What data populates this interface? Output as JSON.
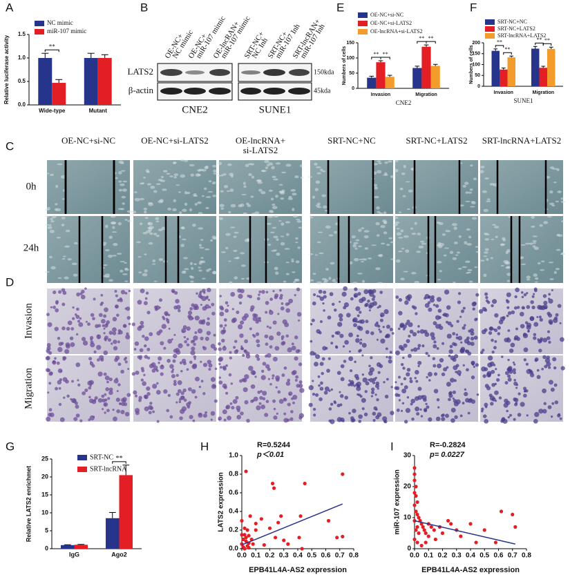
{
  "panel_labels": [
    "A",
    "B",
    "C",
    "D",
    "E",
    "F",
    "G",
    "H",
    "I"
  ],
  "blot": {
    "lanes": [
      [
        "OE-NC+",
        "NC mimic"
      ],
      [
        "OE-NC+",
        "miR-107 mimic"
      ],
      [
        "OE-lncRAN+",
        "miR-107 mimic"
      ],
      [
        "SRT-NC+",
        "NC Inh"
      ],
      [
        "SRT-NC+",
        "miR-107 Inh"
      ],
      [
        "SRT-lncRAN+",
        "miR-107 Inh"
      ]
    ],
    "proteins": [
      "LATS2",
      "β-actin"
    ],
    "sizes": [
      "150kda",
      "45kda"
    ],
    "cell_lines": [
      "CNE2",
      "SUNE1"
    ]
  },
  "wound_healing": {
    "conditions": [
      [
        "OE-NC+si-NC"
      ],
      [
        "OE-NC+si-LATS2"
      ],
      [
        "OE-lncRNA+",
        "si-LATS2"
      ],
      [
        "SRT-NC+NC"
      ],
      [
        "SRT-NC+LATS2"
      ],
      [
        "SRT-lncRNA+LATS2"
      ]
    ],
    "timepoints": [
      "0h",
      "24h"
    ]
  },
  "transwell": {
    "assays": [
      "Invasion",
      "Migration"
    ]
  },
  "chart_data": [
    {
      "type": "bar",
      "y_label": "Relative luciferase activity",
      "categories": [
        "Wide-type",
        "Mutant"
      ],
      "series": [
        {
          "name": "NC mimic",
          "color": "#27348b",
          "values": [
            1.0,
            1.0
          ],
          "errors": [
            0.1,
            0.1
          ]
        },
        {
          "name": "miR-107 mimic",
          "color": "#e31e24",
          "values": [
            0.47,
            1.0
          ],
          "errors": [
            0.07,
            0.07
          ]
        }
      ],
      "ylim": [
        0,
        1.5
      ],
      "yticks": [
        {
          "value": 0,
          "label": "0.0"
        },
        0.5,
        {
          "value": 1,
          "label": "1.0"
        },
        1.5
      ],
      "legend": "top-left",
      "annotations": [
        "**"
      ]
    },
    {
      "type": "bar",
      "y_label": "Numbers of cells",
      "x_label": "CNE2",
      "categories": [
        "Invasion",
        "Migration"
      ],
      "series": [
        {
          "name": "OE-NC+si-NC",
          "color": "#27348b",
          "values": [
            35,
            67
          ],
          "errors": [
            5,
            6
          ]
        },
        {
          "name": "OE-NC+si-LATS2",
          "color": "#e31e24",
          "values": [
            86,
            137
          ],
          "errors": [
            5,
            6
          ]
        },
        {
          "name": "OE-lncRNA+si-LATS2",
          "color": "#f39c2c",
          "values": [
            38,
            74
          ],
          "errors": [
            5,
            5
          ]
        }
      ],
      "ylim": [
        0,
        150
      ],
      "yticks": [
        0,
        50,
        100,
        150
      ],
      "legend": "top-left",
      "annotations": [
        "**",
        "**",
        "**",
        "**"
      ]
    },
    {
      "type": "bar",
      "y_label": "Numbers of cells",
      "x_label": "SUNE1",
      "categories": [
        "Invasion",
        "Migration"
      ],
      "series": [
        {
          "name": "SRT-NC+NC",
          "color": "#27348b",
          "values": [
            163,
            173
          ],
          "errors": [
            9,
            10
          ]
        },
        {
          "name": "SRT-NC+LATS2",
          "color": "#e31e24",
          "values": [
            77,
            85
          ],
          "errors": [
            7,
            7
          ]
        },
        {
          "name": "SRT-lncRNA+LATS2",
          "color": "#f39c2c",
          "values": [
            133,
            172
          ],
          "errors": [
            6,
            8
          ]
        }
      ],
      "ylim": [
        0,
        200
      ],
      "yticks": [
        0,
        50,
        100,
        150,
        200
      ],
      "legend": "top-left",
      "annotations": [
        "**",
        "**",
        "**",
        "**"
      ]
    },
    {
      "type": "bar",
      "y_label": "Relative LATS2 enrichmet",
      "categories": [
        "IgG",
        "Ago2"
      ],
      "series": [
        {
          "name": "SRT-NC",
          "color": "#27348b",
          "values": [
            1.0,
            8.5
          ],
          "errors": [
            0.1,
            1.6
          ]
        },
        {
          "name": "SRT-lncRNA",
          "color": "#e31e24",
          "values": [
            1.1,
            20.5
          ],
          "errors": [
            0.1,
            2.8
          ]
        }
      ],
      "ylim": [
        0,
        25
      ],
      "yticks": [
        0,
        5,
        10,
        15,
        20,
        25
      ],
      "legend": "top-left",
      "annotations": [
        "**"
      ]
    },
    {
      "type": "scatter",
      "x_label": "EPB41L4A-AS2 expression",
      "y_label": "LATS2 expression",
      "stats": [
        "R=0.5244",
        "p＜0.01"
      ],
      "color": "#e31e24",
      "x": [
        0.0,
        0.01,
        0.01,
        0.02,
        0.02,
        0.03,
        0.03,
        0.04,
        0.04,
        0.05,
        0.05,
        0.06,
        0.07,
        0.08,
        0.1,
        0.1,
        0.03,
        0.0,
        0.14,
        0.16,
        0.2,
        0.22,
        0.23,
        0.24,
        0.26,
        0.28,
        0.3,
        0.33,
        0.42,
        0.43,
        0.45,
        0.41,
        0.62,
        0.68,
        0.72,
        0.72,
        0.0,
        0.02,
        0.05
      ],
      "y": [
        0.05,
        0.1,
        0.02,
        0.15,
        0.0,
        0.08,
        0.12,
        0.03,
        0.2,
        0.06,
        0.01,
        0.35,
        0.1,
        0.05,
        0.2,
        0.27,
        0.83,
        0.3,
        0.32,
        0.04,
        0.22,
        0.7,
        0.65,
        0.12,
        0.28,
        0.35,
        0.09,
        0.05,
        0.35,
        0.0,
        0.7,
        0.12,
        0.3,
        0.12,
        0.8,
        0.13,
        0.15,
        0.22,
        0.14
      ],
      "trend": {
        "x": [
          0,
          0.72
        ],
        "y": [
          0.04,
          0.48
        ],
        "color": "#27348b"
      },
      "xlim": [
        0,
        0.8
      ],
      "xticks": [
        {
          "value": 0,
          "label": "0.0"
        },
        0.1,
        0.2,
        0.3,
        0.4,
        0.5,
        0.6,
        0.7,
        0.8
      ],
      "ylim": [
        0,
        1.0
      ],
      "yticks": [
        {
          "value": 0,
          "label": "0.0"
        },
        0.2,
        0.4,
        0.6,
        0.8,
        {
          "value": 1,
          "label": "1.0"
        }
      ]
    },
    {
      "type": "scatter",
      "x_label": "EPB41L4A-AS2 expression",
      "y_label": "miR-107 expression",
      "stats": [
        "R=-0.2824",
        "p= 0.0227"
      ],
      "color": "#e31e24",
      "x": [
        0,
        0,
        0,
        0.01,
        0,
        0.01,
        0.02,
        0,
        0.01,
        0.02,
        0.03,
        0,
        0.04,
        0.05,
        0.02,
        0.06,
        0.01,
        0.03,
        0.07,
        0.08,
        0.1,
        0.1,
        0.12,
        0.14,
        0.15,
        0.18,
        0.2,
        0.24,
        0.26,
        0.3,
        0.33,
        0.4,
        0.44,
        0.5,
        0.58,
        0.62,
        0.7,
        0.72,
        0,
        0.02,
        0.05,
        0.08
      ],
      "y": [
        26,
        24,
        22,
        20,
        18,
        17,
        15,
        14,
        12,
        11,
        10,
        9,
        9,
        8,
        7,
        7,
        6,
        5,
        6,
        5,
        8,
        4,
        7,
        6,
        3,
        7,
        5,
        9,
        8,
        6,
        4,
        8,
        2,
        6,
        2,
        12,
        11,
        7,
        3,
        2,
        1,
        2
      ],
      "trend": {
        "x": [
          0,
          0.72
        ],
        "y": [
          9,
          1.5
        ],
        "color": "#27348b"
      },
      "xlim": [
        0,
        0.8
      ],
      "xticks": [
        {
          "value": 0,
          "label": "0.0"
        },
        0.1,
        0.2,
        0.3,
        0.4,
        0.5,
        0.6,
        0.7,
        0.8
      ],
      "ylim": [
        0,
        30
      ],
      "yticks": [
        0,
        10,
        20,
        30
      ]
    }
  ]
}
